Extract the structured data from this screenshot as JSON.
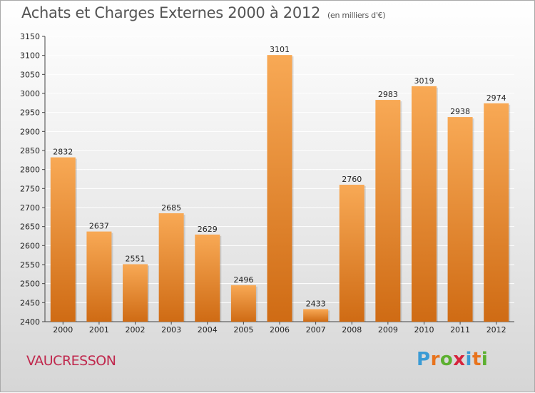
{
  "title": "Achats et Charges Externes 2000 à 2012",
  "subtitle": "(en milliers d'€)",
  "location_label": "VAUCRESSON",
  "logo": {
    "letters": [
      "P",
      "r",
      "o",
      "x",
      "i",
      "t",
      "i"
    ],
    "colors": [
      "#3a9bd5",
      "#e8731c",
      "#5cb030",
      "#d6243c",
      "#3a9bd5",
      "#e8731c",
      "#5cb030"
    ]
  },
  "colors": {
    "bar_top": "#f8a955",
    "bar_bottom": "#cf6b14",
    "label_red": "#c0284d"
  },
  "chart_data": {
    "type": "bar",
    "title": "Achats et Charges Externes 2000 à 2012",
    "subtitle": "(en milliers d'€)",
    "categories": [
      "2000",
      "2001",
      "2002",
      "2003",
      "2004",
      "2005",
      "2006",
      "2007",
      "2008",
      "2009",
      "2010",
      "2011",
      "2012"
    ],
    "values": [
      2832,
      2637,
      2551,
      2685,
      2629,
      2496,
      3101,
      2433,
      2760,
      2983,
      3019,
      2938,
      2974
    ],
    "ylim": [
      2400,
      3150
    ],
    "yticks": [
      2400,
      2450,
      2500,
      2550,
      2600,
      2650,
      2700,
      2750,
      2800,
      2850,
      2900,
      2950,
      3000,
      3050,
      3100,
      3150
    ],
    "xlabel": "",
    "ylabel": "",
    "grid": true,
    "data_labels": true
  }
}
